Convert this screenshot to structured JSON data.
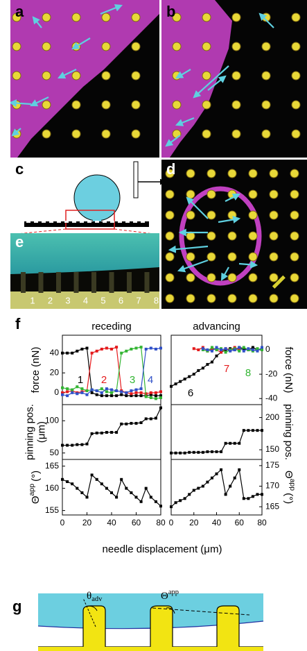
{
  "panels": {
    "a": "a",
    "b": "b",
    "c": "c",
    "d": "d",
    "e": "e",
    "f": "f",
    "g": "g"
  },
  "e_labels": [
    "1",
    "2",
    "3",
    "4",
    "5",
    "6",
    "7",
    "8"
  ],
  "g_labels": {
    "advancing_angle": {
      "symbol": "θ",
      "sub": "adv"
    },
    "apparent_angle": {
      "symbol": "Θ",
      "sup": "app"
    }
  },
  "f_xlabel": "needle displacement (μm)",
  "chart_data": [
    {
      "type": "line",
      "title": "receding",
      "ylabel": "force (nN)",
      "x": [
        0,
        4,
        8,
        12,
        16,
        20,
        24,
        28,
        32,
        36,
        40,
        44,
        48,
        52,
        56,
        60,
        64,
        68,
        72,
        76,
        80
      ],
      "xlim": [
        0,
        80
      ],
      "ylim": [
        -12,
        58
      ],
      "yticks": [
        0,
        20,
        40
      ],
      "series": [
        {
          "name": "1",
          "color": "#000000",
          "values": [
            40,
            40,
            40,
            42,
            44,
            45,
            0,
            -2,
            -3,
            -3,
            -3,
            -3,
            -2,
            -3,
            -3,
            -3,
            -3,
            -3,
            -2,
            -3,
            -3
          ]
        },
        {
          "name": "2",
          "color": "#e41a1c",
          "values": [
            0,
            1,
            2,
            0,
            1,
            2,
            40,
            42,
            44,
            45,
            44,
            46,
            2,
            0,
            -1,
            0,
            0,
            -1,
            0,
            0,
            1
          ]
        },
        {
          "name": "3",
          "color": "#33b533",
          "values": [
            5,
            4,
            3,
            6,
            4,
            2,
            3,
            2,
            4,
            1,
            0,
            2,
            40,
            42,
            44,
            45,
            46,
            -4,
            -5,
            -6,
            -5
          ]
        },
        {
          "name": "4",
          "color": "#3050c8",
          "values": [
            -2,
            -3,
            0,
            -1,
            0,
            -2,
            3,
            2,
            0,
            4,
            3,
            2,
            1,
            0,
            2,
            3,
            4,
            44,
            45,
            44,
            45
          ]
        }
      ]
    },
    {
      "type": "line",
      "title": "advancing",
      "ylabel": "force (nN)",
      "y_side": "right",
      "x": [
        0,
        4,
        8,
        12,
        16,
        20,
        24,
        28,
        32,
        36,
        40,
        44,
        48,
        52,
        56,
        60,
        64,
        68,
        72,
        76,
        80
      ],
      "xlim": [
        0,
        80
      ],
      "ylim": [
        -45,
        12
      ],
      "yticks": [
        -40,
        -20,
        0
      ],
      "series": [
        {
          "name": "6",
          "color": "#000000",
          "values": [
            -30,
            -28,
            -26,
            -24,
            -22,
            -20,
            -17,
            -15,
            -12,
            -10,
            -5,
            -2,
            0,
            1,
            0,
            2,
            1,
            0,
            2,
            0,
            1
          ]
        },
        {
          "name": "7",
          "color": "#e41a1c",
          "values": [
            null,
            null,
            null,
            null,
            null,
            1,
            0,
            2,
            -1,
            1,
            0,
            -2,
            1,
            0,
            2,
            0,
            null,
            null,
            null,
            null,
            null
          ]
        },
        {
          "name": "8",
          "color": "#33b533",
          "values": [
            null,
            null,
            null,
            null,
            null,
            null,
            null,
            0,
            -1,
            2,
            0,
            1,
            -2,
            0,
            1,
            -1,
            2,
            0,
            -1,
            1,
            0
          ]
        },
        {
          "color": "#3050c8",
          "values": [
            null,
            null,
            null,
            null,
            null,
            null,
            null,
            1,
            0,
            -1,
            2,
            0,
            1,
            -1,
            0,
            2,
            -1,
            1,
            0,
            -1,
            2
          ]
        }
      ]
    },
    {
      "type": "line",
      "ylabel": [
        "pinning pos.",
        "(μm)"
      ],
      "x": [
        0,
        4,
        8,
        12,
        16,
        20,
        24,
        28,
        32,
        36,
        40,
        44,
        48,
        52,
        56,
        60,
        64,
        68,
        72,
        76,
        80
      ],
      "xlim": [
        0,
        80
      ],
      "ylim": [
        40,
        125
      ],
      "yticks": [
        50,
        100
      ],
      "series": [
        {
          "color": "#000000",
          "values": [
            62,
            62,
            62,
            63,
            63,
            64,
            80,
            81,
            81,
            82,
            82,
            82,
            95,
            95,
            96,
            96,
            97,
            103,
            103,
            104,
            120
          ]
        }
      ]
    },
    {
      "type": "line",
      "ylabel": "pinning pos.",
      "y_side": "right",
      "x": [
        0,
        4,
        8,
        12,
        16,
        20,
        24,
        28,
        32,
        36,
        40,
        44,
        48,
        52,
        56,
        60,
        64,
        68,
        72,
        76,
        80
      ],
      "xlim": [
        0,
        80
      ],
      "ylim": [
        135,
        220
      ],
      "yticks": [
        150,
        200
      ],
      "series": [
        {
          "color": "#000000",
          "values": [
            145,
            145,
            145,
            145,
            146,
            146,
            146,
            146,
            147,
            147,
            147,
            147,
            160,
            160,
            160,
            160,
            180,
            180,
            180,
            180,
            180
          ]
        }
      ]
    },
    {
      "type": "line",
      "ylabel": {
        "symbol": "Θ",
        "sup": "app",
        "unit": "(°)"
      },
      "x": [
        0,
        4,
        8,
        12,
        16,
        20,
        24,
        28,
        32,
        36,
        40,
        44,
        48,
        52,
        56,
        60,
        64,
        68,
        72,
        76,
        80
      ],
      "xlim": [
        0,
        80
      ],
      "xticks": [
        0,
        20,
        40,
        60,
        80
      ],
      "ylim": [
        154,
        166.5
      ],
      "yticks": [
        155,
        160,
        165
      ],
      "series": [
        {
          "color": "#000000",
          "values": [
            162,
            161.5,
            161,
            160,
            159,
            158,
            163,
            162,
            161,
            160,
            159,
            158,
            162,
            160,
            159,
            158,
            157,
            160,
            158,
            157,
            156
          ]
        }
      ]
    },
    {
      "type": "line",
      "ylabel": {
        "symbol": "Θ",
        "sup": "app",
        "unit": "(°)"
      },
      "y_side": "right",
      "x": [
        0,
        4,
        8,
        12,
        16,
        20,
        24,
        28,
        32,
        36,
        40,
        44,
        48,
        52,
        56,
        60,
        64,
        68,
        72,
        76,
        80
      ],
      "xlim": [
        0,
        80
      ],
      "xticks": [
        0,
        20,
        40,
        60,
        80
      ],
      "ylim": [
        163,
        176.5
      ],
      "yticks": [
        165,
        170,
        175
      ],
      "series": [
        {
          "color": "#000000",
          "values": [
            165,
            166,
            166.5,
            167,
            168,
            169,
            169.5,
            170,
            171,
            172,
            173,
            174,
            168,
            170,
            172,
            174,
            167,
            167,
            167.5,
            168,
            168
          ]
        }
      ]
    }
  ]
}
